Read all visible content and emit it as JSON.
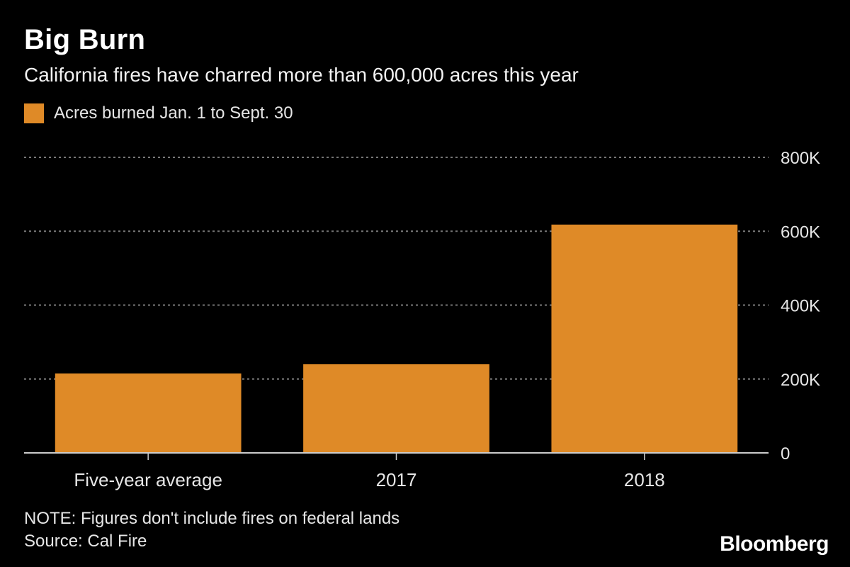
{
  "header": {
    "title": "Big Burn",
    "subtitle": "California fires have charred more than 600,000 acres this year"
  },
  "colors": {
    "bar": "#df8a27",
    "grid": "#777777",
    "axis": "#cccccc",
    "background": "#000000"
  },
  "chart_data": {
    "type": "bar",
    "categories": [
      "Five-year average",
      "2017",
      "2018"
    ],
    "series": [
      {
        "name": "Acres burned Jan. 1 to Sept. 30",
        "values": [
          215000,
          240000,
          618000
        ]
      }
    ],
    "ylim": [
      0,
      800000
    ],
    "yticks": [
      0,
      200000,
      400000,
      600000,
      800000
    ],
    "ytick_labels": [
      "0",
      "200K",
      "400K",
      "600K",
      "800K"
    ],
    "grid": true,
    "legend": "top-left",
    "y_axis_position": "right"
  },
  "footer": {
    "note": "NOTE: Figures don't include fires on federal lands",
    "source": "Source: Cal Fire"
  },
  "brand": {
    "logo_text": "Bloomberg"
  }
}
